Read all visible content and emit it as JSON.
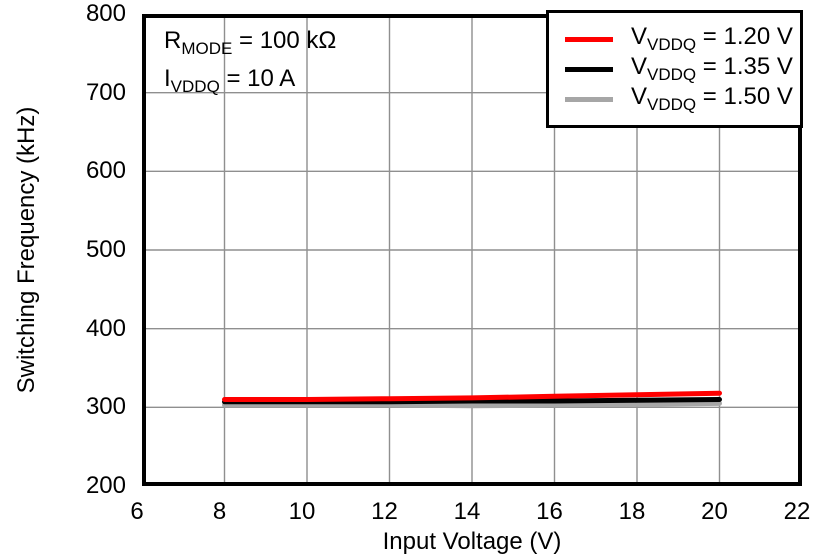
{
  "annotation": {
    "lines": [
      {
        "pre": "R",
        "sub": "MODE",
        "post": " = 100 kΩ"
      },
      {
        "pre": "I",
        "sub": "VDDQ",
        "post": " = 10 A"
      }
    ]
  },
  "legend": {
    "items": [
      {
        "pre": "V",
        "sub": "VDDQ",
        "post": " = 1.20 V",
        "color": "#ff0000"
      },
      {
        "pre": "V",
        "sub": "VDDQ",
        "post": " = 1.35 V",
        "color": "#000000"
      },
      {
        "pre": "V",
        "sub": "VDDQ",
        "post": " = 1.50 V",
        "color": "#a6a6a6"
      }
    ]
  },
  "chart_data": {
    "type": "line",
    "title": "",
    "xlabel": "Input Voltage (V)",
    "ylabel": "Switching Frequency (kHz)",
    "xlim": [
      6,
      22
    ],
    "ylim": [
      200,
      800
    ],
    "xticks": [
      6,
      8,
      10,
      12,
      14,
      16,
      18,
      20,
      22
    ],
    "yticks": [
      200,
      300,
      400,
      500,
      600,
      700,
      800
    ],
    "grid": true,
    "gridcolor": "#8f8f8f",
    "frame_color": "#000000",
    "legend_position": "top-right",
    "x": [
      8,
      10,
      12,
      14,
      16,
      18,
      20
    ],
    "series": [
      {
        "name": "VVDDQ = 1.20 V",
        "color": "#ff0000",
        "values": [
          310,
          310,
          311,
          312,
          314,
          316,
          318
        ]
      },
      {
        "name": "VVDDQ = 1.35 V",
        "color": "#000000",
        "values": [
          307,
          307,
          307,
          308,
          308,
          309,
          310
        ]
      },
      {
        "name": "VVDDQ = 1.50 V",
        "color": "#a6a6a6",
        "values": [
          303,
          303,
          303,
          302,
          303,
          304,
          305
        ]
      }
    ]
  }
}
